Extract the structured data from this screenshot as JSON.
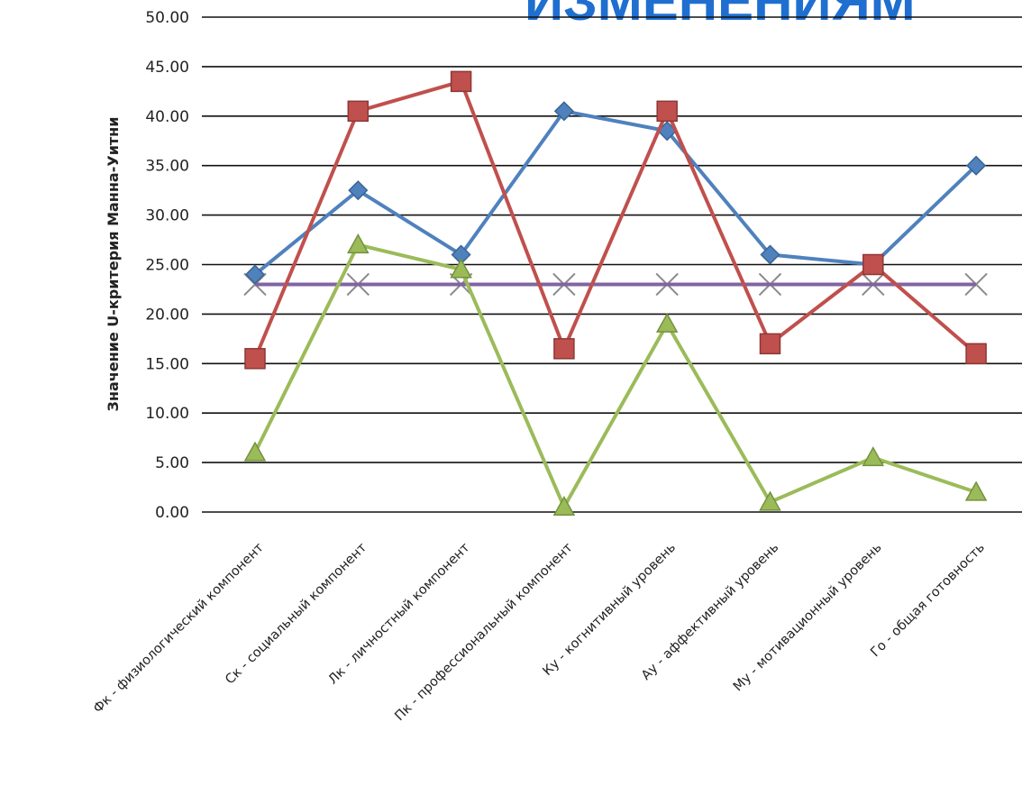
{
  "heading": "ИЗМЕНЕНИЯМ",
  "chart_data": {
    "type": "line",
    "title": "",
    "xlabel": "",
    "ylabel": "Значение U-критерия Манна-Уитни",
    "ylim": [
      0,
      50
    ],
    "yticks": [
      "0.00",
      "5.00",
      "10.00",
      "15.00",
      "20.00",
      "25.00",
      "30.00",
      "35.00",
      "40.00",
      "45.00",
      "50.00"
    ],
    "grid": true,
    "legend": "none",
    "categories": [
      "Фк - физиологический компонент",
      "Ск - социальный компонент",
      "Лк - личностный компонент",
      "Пк - профессиональный компонент",
      "Ку - когнитивный уровень",
      "Ау - аффективный уровень",
      "Му - мотивационный уровень",
      "Го - общая готовность"
    ],
    "series": [
      {
        "marker": "diamond",
        "color": "#4f81bd",
        "values": [
          24,
          32.5,
          26,
          40.5,
          38.5,
          26,
          25,
          35
        ]
      },
      {
        "marker": "square",
        "color": "#c0504d",
        "values": [
          15.5,
          40.5,
          43.5,
          16.5,
          40.5,
          17,
          25,
          16
        ]
      },
      {
        "marker": "triangle",
        "color": "#9bbb59",
        "values": [
          6,
          27,
          24.5,
          0.5,
          19,
          1,
          5.5,
          2
        ]
      },
      {
        "marker": "x",
        "color": "#8064a2",
        "values": [
          23,
          23,
          23,
          23,
          23,
          23,
          23,
          23
        ]
      }
    ]
  }
}
